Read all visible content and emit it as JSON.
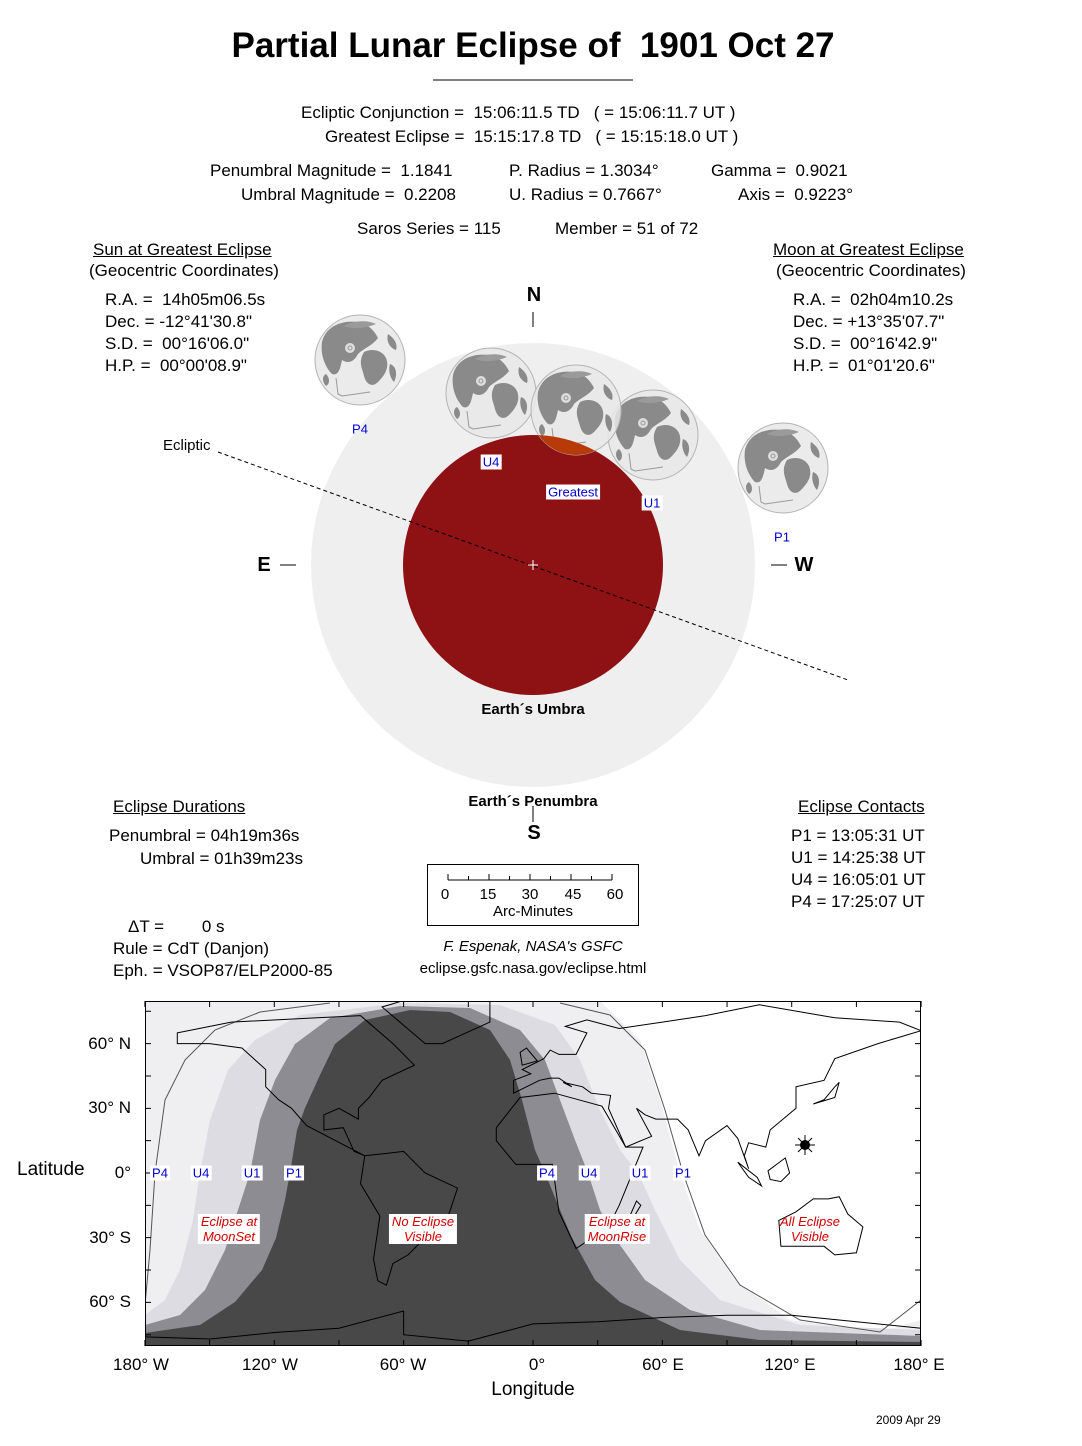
{
  "title": "Partial Lunar Eclipse of  1901 Oct 27",
  "circumstances": {
    "conjunction": "Ecliptic Conjunction =  15:06:11.5 TD   ( = 15:06:11.7 UT )",
    "greatest": "Greatest Eclipse =  15:15:17.8 TD   ( = 15:15:18.0 UT )",
    "pen_mag": "Penumbral Magnitude =  1.1841",
    "umb_mag": "Umbral Magnitude =  0.2208",
    "p_radius": "P. Radius = 1.3034°",
    "u_radius": "U. Radius = 0.7667°",
    "gamma": "Gamma =  0.9021",
    "axis": "Axis =  0.9223°",
    "saros": "Saros Series = 115",
    "member": "Member = 51 of 72"
  },
  "sun": {
    "heading": "Sun at Greatest Eclipse",
    "subheading": "(Geocentric Coordinates)",
    "rows": [
      "R.A. =  14h05m06.5s",
      "Dec. = -12°41'30.8\"",
      "S.D. =  00°16'06.0\"",
      "H.P. =  00°00'08.9\""
    ]
  },
  "moon": {
    "heading": "Moon at Greatest Eclipse",
    "subheading": "(Geocentric Coordinates)",
    "rows": [
      "R.A. =  02h04m10.2s",
      "Dec. = +13°35'07.7\"",
      "S.D. =  00°16'42.9\"",
      "H.P. =  01°01'20.6\""
    ]
  },
  "diagram": {
    "north": "N",
    "south": "S",
    "east": "E",
    "west": "W",
    "ecliptic": "Ecliptic",
    "umbra": "Earth´s Umbra",
    "penumbra": "Earth´s Penumbra",
    "positions": {
      "p4": "P4",
      "u4": "U4",
      "greatest": "Greatest",
      "u1": "U1",
      "p1": "P1"
    },
    "colors": {
      "penumbra": "#efefef",
      "umbra": "#8e1114",
      "moon_in_umbra": "#b83a08",
      "labels": "#0000d0"
    }
  },
  "durations": {
    "heading": "Eclipse Durations",
    "penumbral": "Penumbral = 04h19m36s",
    "umbral": "Umbral = 01h39m23s"
  },
  "misc": {
    "delta_t": "ΔT =        0 s",
    "rule": "Rule = CdT (Danjon)",
    "eph": "Eph. = VSOP87/ELP2000-85"
  },
  "scale": {
    "ticks": [
      "0",
      "15",
      "30",
      "45",
      "60"
    ],
    "label": "Arc-Minutes"
  },
  "credit": {
    "author": "F. Espenak, NASA's GSFC",
    "url": "eclipse.gsfc.nasa.gov/eclipse.html"
  },
  "contacts": {
    "heading": "Eclipse Contacts",
    "rows": [
      "P1 = 13:05:31 UT",
      "U1 = 14:25:38 UT",
      "U4 = 16:05:01 UT",
      "P4 = 17:25:07 UT"
    ]
  },
  "map": {
    "ylabel": "Latitude",
    "xlabel": "Longitude",
    "lat_ticks": [
      "60° N",
      "30° N",
      "0°",
      "30° S",
      "60° S"
    ],
    "lon_ticks": [
      "180° W",
      "120° W",
      "60° W",
      "0°",
      "60° E",
      "120° E",
      "180° E"
    ],
    "contact_labels_west": [
      "P4",
      "U4",
      "U1",
      "P1"
    ],
    "contact_labels_east": [
      "P4",
      "U4",
      "U1",
      "P1"
    ],
    "regions": {
      "moonset": "Eclipse at\nMoonSet",
      "none": "No Eclipse\nVisible",
      "moonrise": "Eclipse at\nMoonRise",
      "all": "All Eclipse\nVisible"
    },
    "colors": {
      "none": "#484848",
      "umbral_partial": "#8c8c92",
      "penumbral_partial": "#dcdce2",
      "penumbral_only": "#efeff2",
      "all": "#ffffff"
    }
  },
  "date": "2009 Apr 29"
}
